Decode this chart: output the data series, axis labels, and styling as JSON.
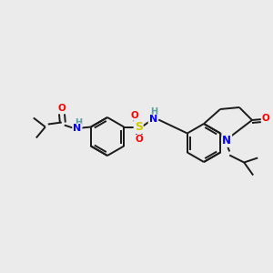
{
  "bg_color": "#ebebeb",
  "bond_color": "#1a1a1a",
  "atom_colors": {
    "O": "#ff0000",
    "N": "#0000ff",
    "S": "#cccc00",
    "H_N": "#5a9ea0",
    "C": "#1a1a1a"
  },
  "figsize": [
    3.0,
    3.0
  ],
  "dpi": 100,
  "lw": 1.4,
  "fs": 7.5
}
